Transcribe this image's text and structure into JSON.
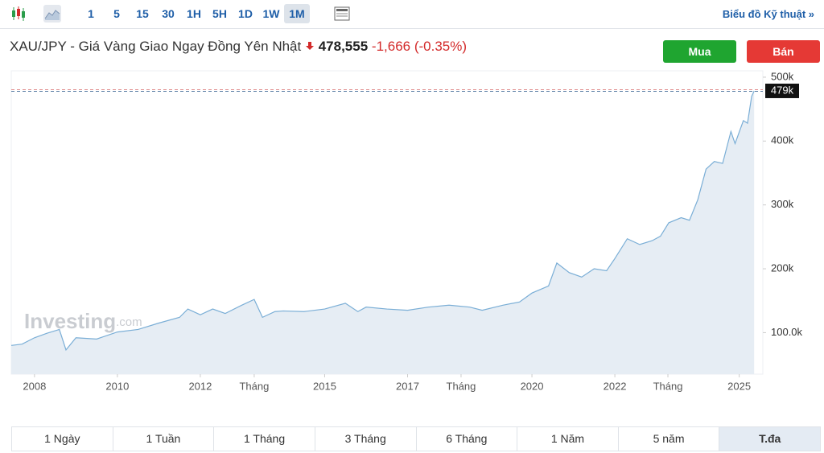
{
  "toolbar": {
    "intervals": [
      "1",
      "5",
      "15",
      "30",
      "1H",
      "5H",
      "1D",
      "1W",
      "1M"
    ],
    "active_interval": "1M",
    "technical_link": "Biểu đồ Kỹ thuật »"
  },
  "header": {
    "title": "XAU/JPY - Giá Vàng Giao Ngay Đồng Yên Nhật",
    "price": "478,555",
    "change": "-1,666",
    "change_pct": "(-0.35%)",
    "buy": "Mua",
    "sell": "Bán"
  },
  "chart_data": {
    "type": "area",
    "watermark": "Investing",
    "watermark_suffix": ".com",
    "x": [
      2007.44,
      2007.7,
      2008.0,
      2008.3,
      2008.6,
      2008.76,
      2009.0,
      2009.5,
      2010.0,
      2010.5,
      2011.0,
      2011.5,
      2011.7,
      2012.0,
      2012.3,
      2012.6,
      2013.0,
      2013.3,
      2013.5,
      2013.8,
      2014.0,
      2014.5,
      2015.0,
      2015.5,
      2015.8,
      2016.0,
      2016.5,
      2017.0,
      2017.5,
      2018.0,
      2018.5,
      2018.8,
      2019.3,
      2019.7,
      2020.0,
      2020.4,
      2020.6,
      2020.9,
      2021.2,
      2021.5,
      2021.8,
      2022.0,
      2022.3,
      2022.6,
      2022.9,
      2023.1,
      2023.3,
      2023.6,
      2023.8,
      2024.0,
      2024.2,
      2024.4,
      2024.6,
      2024.8,
      2024.9,
      2025.1,
      2025.2,
      2025.3,
      2025.36
    ],
    "series": [
      {
        "color": "#7aaed6",
        "fill": "#e6edf4",
        "values": [
          80000,
          82000,
          92000,
          99000,
          105000,
          73000,
          92000,
          90000,
          101000,
          105000,
          115000,
          124000,
          137000,
          128000,
          137000,
          130000,
          143000,
          152000,
          124000,
          133000,
          134000,
          133000,
          137000,
          146000,
          133000,
          140000,
          137000,
          135000,
          140000,
          143000,
          140000,
          135000,
          143000,
          148000,
          162000,
          173000,
          209000,
          194000,
          187000,
          200000,
          197000,
          216000,
          247000,
          238000,
          244000,
          251000,
          272000,
          280000,
          276000,
          308000,
          356000,
          368000,
          365000,
          415000,
          396000,
          432000,
          428000,
          470000,
          478555
        ]
      }
    ],
    "xlim": [
      2007.44,
      2025.57
    ],
    "xticks": [
      {
        "value": 2008,
        "label": "2008"
      },
      {
        "value": 2010,
        "label": "2010"
      },
      {
        "value": 2012,
        "label": "2012"
      },
      {
        "value": 2013.3,
        "label": "Tháng"
      },
      {
        "value": 2015,
        "label": "2015"
      },
      {
        "value": 2017,
        "label": "2017"
      },
      {
        "value": 2018.29,
        "label": "Tháng"
      },
      {
        "value": 2020,
        "label": "2020"
      },
      {
        "value": 2022,
        "label": "2022"
      },
      {
        "value": 2023.28,
        "label": "Tháng"
      },
      {
        "value": 2025,
        "label": "2025"
      }
    ],
    "ylim": [
      35000,
      510000
    ],
    "yticks": [
      {
        "value": 500000,
        "label": "500k"
      },
      {
        "value": 400000,
        "label": "400k"
      },
      {
        "value": 300000,
        "label": "300k"
      },
      {
        "value": 200000,
        "label": "200k"
      },
      {
        "value": 100000,
        "label": "100.0k"
      }
    ],
    "price_line": {
      "value": 478555,
      "label": "479k"
    },
    "grid": false
  },
  "ranges": {
    "items": [
      "1 Ngày",
      "1 Tuần",
      "1 Tháng",
      "3 Tháng",
      "6 Tháng",
      "1 Năm",
      "5 năm",
      "T.đa"
    ],
    "active": "T.đa"
  }
}
